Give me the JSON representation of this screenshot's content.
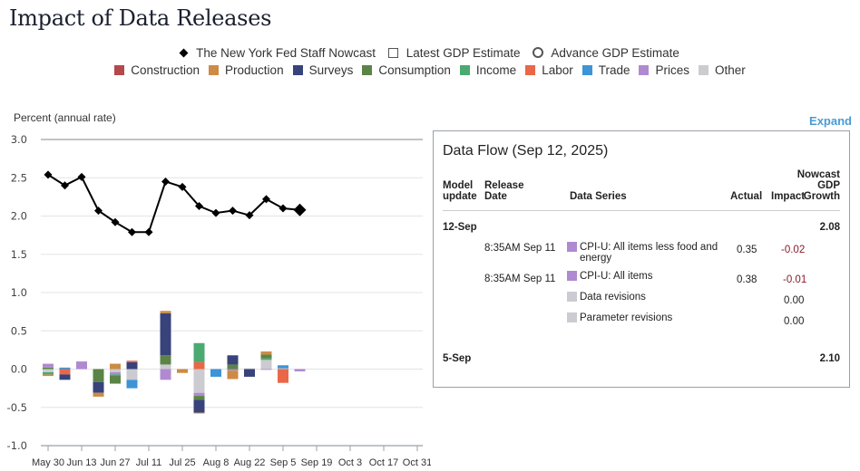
{
  "page": {
    "title": "Impact of Data Releases",
    "y_axis_label": "Percent (annual rate)",
    "expand_label": "Expand"
  },
  "legend": {
    "markers": [
      {
        "label": "The New York Fed Staff Nowcast",
        "symbol": "diamond"
      },
      {
        "label": "Latest GDP Estimate",
        "symbol": "square"
      },
      {
        "label": "Advance GDP Estimate",
        "symbol": "circle"
      }
    ],
    "categories": [
      {
        "label": "Construction",
        "color": "#b5484b"
      },
      {
        "label": "Production",
        "color": "#cd8b44"
      },
      {
        "label": "Surveys",
        "color": "#37437a"
      },
      {
        "label": "Consumption",
        "color": "#5b8446"
      },
      {
        "label": "Income",
        "color": "#4aaa72"
      },
      {
        "label": "Labor",
        "color": "#ea6748"
      },
      {
        "label": "Trade",
        "color": "#3d94d6"
      },
      {
        "label": "Prices",
        "color": "#b08ad0"
      },
      {
        "label": "Other",
        "color": "#cbcbd1"
      }
    ]
  },
  "chart_data": {
    "type": "bar+line",
    "title": "Impact of Data Releases",
    "ylabel": "Percent (annual rate)",
    "xlabel": "",
    "ylim": [
      -1.0,
      3.0
    ],
    "yticks": [
      "3.0",
      "2.5",
      "2.0",
      "1.5",
      "1.0",
      "0.5",
      "0.0",
      "-0.5",
      "-1.0"
    ],
    "ytick_values": [
      3.0,
      2.5,
      2.0,
      1.5,
      1.0,
      0.5,
      0.0,
      -0.5,
      -1.0
    ],
    "xticks": [
      "May 30",
      "Jun 13",
      "Jun 27",
      "Jul 11",
      "Jul 25",
      "Aug 8",
      "Aug 22",
      "Sep 5",
      "Sep 19",
      "Oct 3",
      "Oct 17",
      "Oct 31"
    ],
    "grid": true,
    "legend_position": "top-center",
    "weeks": [
      "May 30",
      "Jun 6",
      "Jun 13",
      "Jun 20",
      "Jun 27",
      "Jul 4",
      "Jul 11",
      "Jul 18",
      "Jul 25",
      "Aug 1",
      "Aug 8",
      "Aug 15",
      "Aug 22",
      "Aug 29",
      "Sep 5",
      "Sep 12"
    ],
    "nowcast": {
      "name": "The New York Fed Staff Nowcast",
      "values": [
        2.54,
        2.4,
        2.51,
        2.07,
        1.92,
        1.79,
        1.79,
        2.45,
        2.38,
        2.13,
        2.04,
        2.07,
        2.01,
        2.22,
        2.1,
        2.08
      ]
    },
    "impacts": [
      {
        "week": "May 30",
        "segments": {
          "Consumption": 0.02,
          "Prices": 0.05,
          "Other": -0.04,
          "Income": -0.03,
          "Production": -0.02
        }
      },
      {
        "week": "Jun 6",
        "segments": {
          "Trade": 0.02,
          "Labor": -0.07,
          "Surveys": -0.07
        }
      },
      {
        "week": "Jun 13",
        "segments": {
          "Prices": 0.1
        }
      },
      {
        "week": "Jun 20",
        "segments": {
          "Consumption": -0.17,
          "Surveys": -0.14,
          "Production": -0.05
        }
      },
      {
        "week": "Jun 27",
        "segments": {
          "Production": 0.07,
          "Other": -0.04,
          "Prices": -0.03,
          "Income": -0.01,
          "Consumption": -0.11
        }
      },
      {
        "week": "Jul 4",
        "segments": {
          "Surveys": 0.09,
          "Labor": 0.02,
          "Other": -0.14,
          "Trade": -0.11
        }
      },
      {
        "week": "Jul 11",
        "segments": {}
      },
      {
        "week": "Jul 18",
        "segments": {
          "Other": 0.06,
          "Consumption": 0.12,
          "Surveys": 0.55,
          "Production": 0.03,
          "Prices": -0.14
        }
      },
      {
        "week": "Jul 25",
        "segments": {
          "Production": -0.05
        }
      },
      {
        "week": "Aug 1",
        "segments": {
          "Labor": 0.09,
          "Income": 0.25,
          "Other": -0.31,
          "Prices": -0.04,
          "Consumption": -0.05,
          "Surveys": -0.17,
          "Production": -0.01
        }
      },
      {
        "week": "Aug 8",
        "segments": {
          "Trade": -0.1
        }
      },
      {
        "week": "Aug 15",
        "segments": {
          "Consumption": 0.06,
          "Surveys": 0.12,
          "Prices": -0.02,
          "Production": -0.11
        }
      },
      {
        "week": "Aug 22",
        "segments": {
          "Surveys": -0.1,
          "Other": 0.01
        }
      },
      {
        "week": "Aug 29",
        "segments": {
          "Other": 0.12,
          "Income": 0.02,
          "Consumption": 0.05,
          "Production": 0.04,
          "Prices": -0.01
        }
      },
      {
        "week": "Sep 5",
        "segments": {
          "Other": 0.01,
          "Trade": 0.04,
          "Labor": -0.18
        }
      },
      {
        "week": "Sep 12",
        "segments": {
          "Prices": -0.03
        }
      }
    ]
  },
  "data_flow": {
    "title": "Data Flow (Sep 12, 2025)",
    "headers": {
      "model_update": [
        "Model",
        "update"
      ],
      "release_date": [
        "Release",
        "Date"
      ],
      "data_series": "Data Series",
      "actual": "Actual",
      "impact": "Impact",
      "nowcast": [
        "Nowcast",
        "GDP",
        "Growth"
      ]
    },
    "groups": [
      {
        "model_update": "12-Sep",
        "nowcast": "2.08",
        "rows": [
          {
            "release_date": "8:35AM Sep 11",
            "series": [
              "CPI-U: All items less food and",
              "energy"
            ],
            "category": "Prices",
            "actual": "0.35",
            "impact": "-0.02"
          },
          {
            "release_date": "8:35AM Sep 11",
            "series": [
              "CPI-U: All items"
            ],
            "category": "Prices",
            "actual": "0.38",
            "impact": "-0.01"
          },
          {
            "release_date": "",
            "series": [
              "Data revisions"
            ],
            "category": "Other",
            "actual": "",
            "impact": "0.00"
          },
          {
            "release_date": "",
            "series": [
              "Parameter revisions"
            ],
            "category": "Other",
            "actual": "",
            "impact": "0.00"
          }
        ]
      },
      {
        "model_update": "5-Sep",
        "nowcast": "2.10",
        "rows": []
      }
    ]
  }
}
